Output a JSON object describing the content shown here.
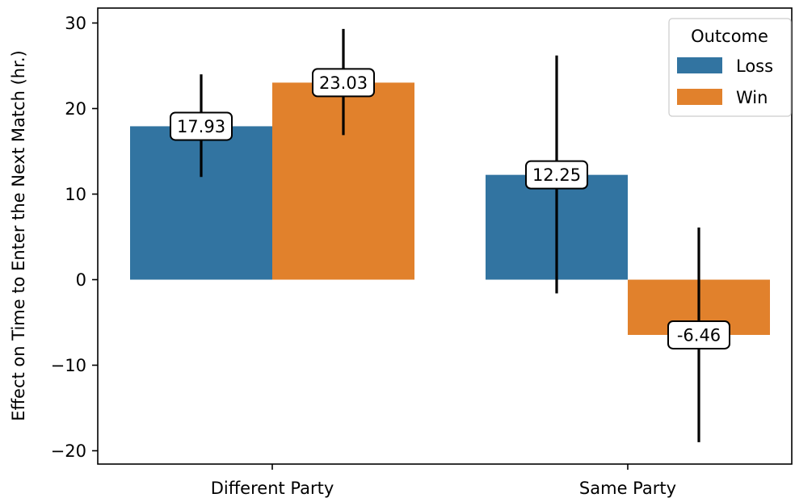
{
  "chart_data": {
    "type": "bar",
    "categories": [
      "Different Party",
      "Same Party"
    ],
    "series": [
      {
        "name": "Loss",
        "color": "#3274a1",
        "values": [
          17.93,
          12.25
        ],
        "ci_low": [
          12.0,
          -1.6
        ],
        "ci_high": [
          24.0,
          26.2
        ],
        "labels": [
          "17.93",
          "12.25"
        ]
      },
      {
        "name": "Win",
        "color": "#e1812c",
        "values": [
          23.03,
          -6.46
        ],
        "ci_low": [
          16.9,
          -19.0
        ],
        "ci_high": [
          29.3,
          6.1
        ],
        "labels": [
          "23.03",
          "-6.46"
        ]
      }
    ],
    "title": "",
    "xlabel": "",
    "ylabel": "Effect on Time to Enter the Next Match (hr.)",
    "ylim": [
      -21.5,
      31.8
    ],
    "yticks": [
      30,
      20,
      10,
      0,
      -10,
      -20
    ],
    "ytick_labels": [
      "30",
      "20",
      "10",
      "0",
      "−10",
      "−20"
    ],
    "legend": {
      "title": "Outcome",
      "position": "top-right"
    },
    "grid": false
  }
}
